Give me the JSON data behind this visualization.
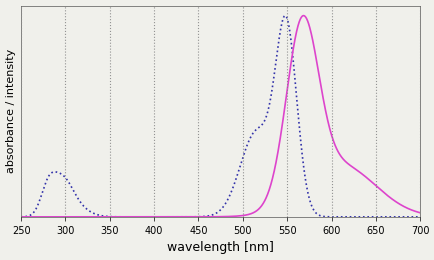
{
  "xlabel": "wavelength [nm]",
  "ylabel": "absorbance / intensity",
  "xlim": [
    250,
    700
  ],
  "ylim": [
    0,
    1.05
  ],
  "xticks": [
    250,
    300,
    350,
    400,
    450,
    500,
    550,
    600,
    650,
    700
  ],
  "background_color": "#f0f0eb",
  "excitation_color": "#3333aa",
  "emission_color": "#dd44cc",
  "xlabel_fontsize": 9,
  "ylabel_fontsize": 8
}
